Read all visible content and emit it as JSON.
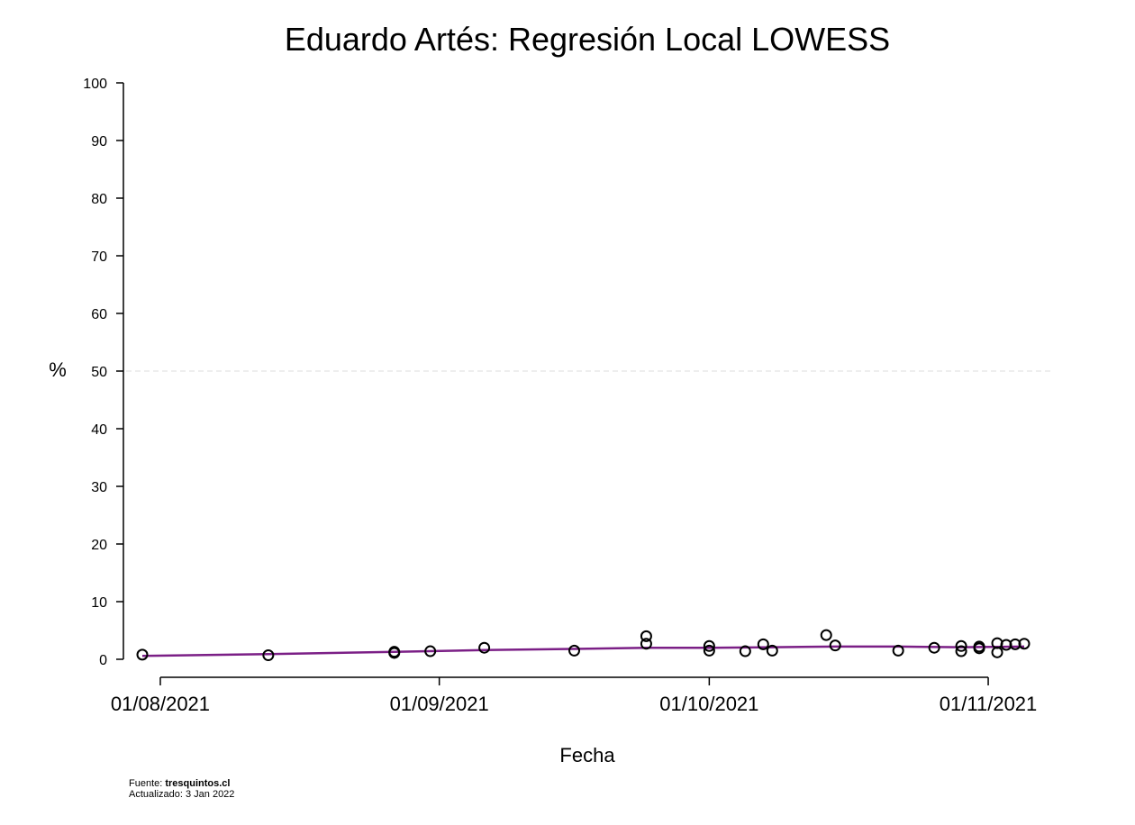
{
  "chart_data": {
    "type": "scatter",
    "title": "Eduardo Artés: Regresión Local LOWESS",
    "xlabel": "Fecha",
    "ylabel": "%",
    "ylim": [
      0,
      100
    ],
    "yticks": [
      0,
      10,
      20,
      30,
      40,
      50,
      60,
      70,
      80,
      90,
      100
    ],
    "xlim": [
      "2021-07-30",
      "2021-11-06"
    ],
    "xticks": [
      {
        "date": "2021-08-01",
        "label": "01/08/2021"
      },
      {
        "date": "2021-09-01",
        "label": "01/09/2021"
      },
      {
        "date": "2021-10-01",
        "label": "01/10/2021"
      },
      {
        "date": "2021-11-01",
        "label": "01/11/2021"
      }
    ],
    "reference_line": {
      "y": 50,
      "style": "dashed",
      "color": "#dddddd"
    },
    "points": [
      {
        "date": "2021-07-30",
        "y": 0.8
      },
      {
        "date": "2021-08-13",
        "y": 0.7
      },
      {
        "date": "2021-08-27",
        "y": 1.3
      },
      {
        "date": "2021-08-27",
        "y": 1.1
      },
      {
        "date": "2021-08-31",
        "y": 1.4
      },
      {
        "date": "2021-09-06",
        "y": 2.0
      },
      {
        "date": "2021-09-16",
        "y": 1.5
      },
      {
        "date": "2021-09-24",
        "y": 4.0
      },
      {
        "date": "2021-09-24",
        "y": 2.7
      },
      {
        "date": "2021-10-01",
        "y": 2.3
      },
      {
        "date": "2021-10-01",
        "y": 1.5
      },
      {
        "date": "2021-10-05",
        "y": 1.4
      },
      {
        "date": "2021-10-07",
        "y": 2.6
      },
      {
        "date": "2021-10-08",
        "y": 1.5
      },
      {
        "date": "2021-10-14",
        "y": 4.2
      },
      {
        "date": "2021-10-15",
        "y": 2.4
      },
      {
        "date": "2021-10-22",
        "y": 1.5
      },
      {
        "date": "2021-10-26",
        "y": 2.0
      },
      {
        "date": "2021-10-29",
        "y": 2.3
      },
      {
        "date": "2021-10-29",
        "y": 1.4
      },
      {
        "date": "2021-10-31",
        "y": 2.2
      },
      {
        "date": "2021-10-31",
        "y": 1.9
      },
      {
        "date": "2021-11-02",
        "y": 2.8
      },
      {
        "date": "2021-11-02",
        "y": 1.2
      },
      {
        "date": "2021-11-03",
        "y": 2.5
      },
      {
        "date": "2021-11-04",
        "y": 2.6
      },
      {
        "date": "2021-11-05",
        "y": 2.7
      }
    ],
    "lowess": {
      "color": "#7b1f86",
      "points": [
        {
          "date": "2021-07-30",
          "y": 0.6
        },
        {
          "date": "2021-08-13",
          "y": 0.9
        },
        {
          "date": "2021-08-27",
          "y": 1.3
        },
        {
          "date": "2021-09-06",
          "y": 1.6
        },
        {
          "date": "2021-09-16",
          "y": 1.8
        },
        {
          "date": "2021-09-24",
          "y": 2.0
        },
        {
          "date": "2021-10-01",
          "y": 2.0
        },
        {
          "date": "2021-10-08",
          "y": 2.1
        },
        {
          "date": "2021-10-15",
          "y": 2.2
        },
        {
          "date": "2021-10-22",
          "y": 2.2
        },
        {
          "date": "2021-10-29",
          "y": 2.1
        },
        {
          "date": "2021-11-05",
          "y": 2.2
        }
      ]
    }
  },
  "footer": {
    "source_prefix": "Fuente: ",
    "source_name": "tresquintos.cl",
    "updated": "Actualizado: 3 Jan 2022"
  }
}
